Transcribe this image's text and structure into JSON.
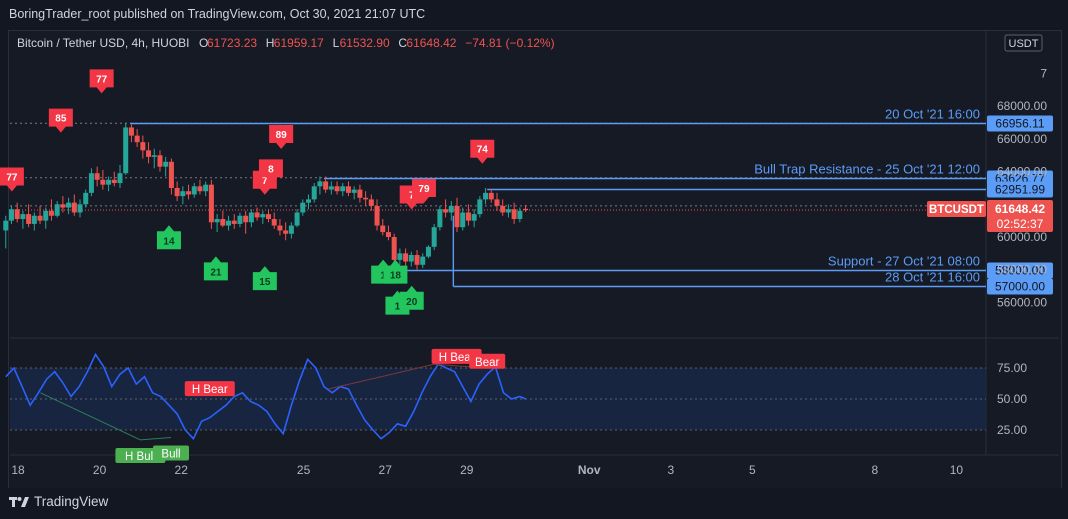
{
  "header": {
    "publisher_line": "BoringTrader_root published on TradingView.com, Oct 30, 2021 21:07 UTC"
  },
  "footer": {
    "brand": "TradingView"
  },
  "colors": {
    "background": "#131722",
    "up": "#26a69a",
    "down": "#ef5350",
    "level_line": "#5b9cf6",
    "rsi_line": "#2962ff",
    "bull_label": "#22c55e",
    "bear_label": "#f23645",
    "text": "#d1d4dc",
    "axis_text": "#b2b5be"
  },
  "chart_data": [
    {
      "type": "candlestick",
      "symbol_line": {
        "name": "Bitcoin / Tether USD, 4h, HUOBI",
        "open_label": "O",
        "open": "61723.23",
        "high_label": "H",
        "high": "61959.17",
        "low_label": "L",
        "low": "61532.90",
        "close_label": "C",
        "close": "61648.42",
        "change": "−74.81 (−0.12%)"
      },
      "currency": "USDT",
      "price_axis_ticks": [
        "7",
        "68000.00",
        "66000.00",
        "64000.00",
        "62000.00",
        "60000.00",
        "58000.00",
        "56000.00"
      ],
      "time_axis_ticks": [
        "18",
        "20",
        "22",
        "25",
        "27",
        "29",
        "Nov",
        "3",
        "5",
        "8",
        "10"
      ],
      "horizontal_levels": [
        {
          "label": "20 Oct '21 16:00",
          "price": "66956.11",
          "value": 66956.11,
          "x_start_day": 20.75
        },
        {
          "label": "Bull Trap Resistance - 25 Oct '21 12:00",
          "price": "63626.77",
          "value": 63626.77,
          "x_start_day": 25.5
        },
        {
          "label": "",
          "price": "62951.99",
          "value": 62951.99,
          "x_start_day": 29.5
        },
        {
          "label": "Support - 27 Oct '21 08:00",
          "price": "58000.00",
          "value": 58000.0,
          "x_start_day": 27.3
        },
        {
          "label": "28 Oct '21 16:00",
          "price": "57000.00",
          "value": 57000.0,
          "x_start_day": 28.67
        }
      ],
      "dotted_levels": [
        66956.11,
        63626.77,
        61900.0
      ],
      "last_price_badge": {
        "symbol": "BTCUSDT",
        "price": "61648.42",
        "countdown": "02:52:37"
      },
      "candles": [
        {
          "t": 17.7,
          "o": 60400,
          "h": 61300,
          "l": 59300,
          "c": 61000
        },
        {
          "t": 17.84,
          "o": 61000,
          "h": 61900,
          "l": 60800,
          "c": 61700
        },
        {
          "t": 17.98,
          "o": 61700,
          "h": 62100,
          "l": 60900,
          "c": 61100
        },
        {
          "t": 18.12,
          "o": 61100,
          "h": 61600,
          "l": 60500,
          "c": 61400
        },
        {
          "t": 18.26,
          "o": 61400,
          "h": 62000,
          "l": 60600,
          "c": 60800
        },
        {
          "t": 18.4,
          "o": 60800,
          "h": 61500,
          "l": 60400,
          "c": 61300
        },
        {
          "t": 18.54,
          "o": 61300,
          "h": 61900,
          "l": 60800,
          "c": 61000
        },
        {
          "t": 18.68,
          "o": 61000,
          "h": 61800,
          "l": 60500,
          "c": 61600
        },
        {
          "t": 18.82,
          "o": 61600,
          "h": 62300,
          "l": 61000,
          "c": 61300
        },
        {
          "t": 18.96,
          "o": 61300,
          "h": 62200,
          "l": 61200,
          "c": 62000
        },
        {
          "t": 19.1,
          "o": 62000,
          "h": 62500,
          "l": 61500,
          "c": 61800
        },
        {
          "t": 19.24,
          "o": 61800,
          "h": 62400,
          "l": 61400,
          "c": 62100
        },
        {
          "t": 19.38,
          "o": 62100,
          "h": 62600,
          "l": 61300,
          "c": 61500
        },
        {
          "t": 19.52,
          "o": 61500,
          "h": 62300,
          "l": 61200,
          "c": 62000
        },
        {
          "t": 19.66,
          "o": 62000,
          "h": 62900,
          "l": 61800,
          "c": 62700
        },
        {
          "t": 19.8,
          "o": 62700,
          "h": 64200,
          "l": 62500,
          "c": 63900
        },
        {
          "t": 19.94,
          "o": 63900,
          "h": 64300,
          "l": 63100,
          "c": 63500
        },
        {
          "t": 20.08,
          "o": 63500,
          "h": 64100,
          "l": 62900,
          "c": 63200
        },
        {
          "t": 20.22,
          "o": 63200,
          "h": 63700,
          "l": 62800,
          "c": 63500
        },
        {
          "t": 20.36,
          "o": 63500,
          "h": 64000,
          "l": 63100,
          "c": 63300
        },
        {
          "t": 20.5,
          "o": 63300,
          "h": 64400,
          "l": 63000,
          "c": 63900
        },
        {
          "t": 20.64,
          "o": 63900,
          "h": 67000,
          "l": 63800,
          "c": 66700
        },
        {
          "t": 20.78,
          "o": 66700,
          "h": 66900,
          "l": 65800,
          "c": 66200
        },
        {
          "t": 20.92,
          "o": 66200,
          "h": 66600,
          "l": 65500,
          "c": 65800
        },
        {
          "t": 21.06,
          "o": 65800,
          "h": 66200,
          "l": 64800,
          "c": 65300
        },
        {
          "t": 21.2,
          "o": 65300,
          "h": 65800,
          "l": 64500,
          "c": 64900
        },
        {
          "t": 21.34,
          "o": 64900,
          "h": 65400,
          "l": 64200,
          "c": 65000
        },
        {
          "t": 21.48,
          "o": 65000,
          "h": 65300,
          "l": 64000,
          "c": 64300
        },
        {
          "t": 21.62,
          "o": 64300,
          "h": 64900,
          "l": 63700,
          "c": 64600
        },
        {
          "t": 21.76,
          "o": 64600,
          "h": 64800,
          "l": 62600,
          "c": 63000
        },
        {
          "t": 21.9,
          "o": 63000,
          "h": 63400,
          "l": 62200,
          "c": 62500
        },
        {
          "t": 22.04,
          "o": 62500,
          "h": 63100,
          "l": 62000,
          "c": 62800
        },
        {
          "t": 22.18,
          "o": 62800,
          "h": 63200,
          "l": 62300,
          "c": 62600
        },
        {
          "t": 22.32,
          "o": 62600,
          "h": 63300,
          "l": 62400,
          "c": 63100
        },
        {
          "t": 22.46,
          "o": 63100,
          "h": 63500,
          "l": 62600,
          "c": 62800
        },
        {
          "t": 22.6,
          "o": 62800,
          "h": 63400,
          "l": 62500,
          "c": 63200
        },
        {
          "t": 22.74,
          "o": 63200,
          "h": 63500,
          "l": 60500,
          "c": 60900
        },
        {
          "t": 22.88,
          "o": 60900,
          "h": 61400,
          "l": 60300,
          "c": 61100
        },
        {
          "t": 23.02,
          "o": 61100,
          "h": 61600,
          "l": 60600,
          "c": 60700
        },
        {
          "t": 23.16,
          "o": 60700,
          "h": 61300,
          "l": 60400,
          "c": 61000
        },
        {
          "t": 23.3,
          "o": 61000,
          "h": 61400,
          "l": 60500,
          "c": 60800
        },
        {
          "t": 23.44,
          "o": 60800,
          "h": 61500,
          "l": 60600,
          "c": 61300
        },
        {
          "t": 23.58,
          "o": 61300,
          "h": 61600,
          "l": 60200,
          "c": 60900
        },
        {
          "t": 23.72,
          "o": 60900,
          "h": 61700,
          "l": 60600,
          "c": 61500
        },
        {
          "t": 23.86,
          "o": 61500,
          "h": 61800,
          "l": 61000,
          "c": 61200
        },
        {
          "t": 24.0,
          "o": 61200,
          "h": 61600,
          "l": 60800,
          "c": 61400
        },
        {
          "t": 24.14,
          "o": 61400,
          "h": 61700,
          "l": 60900,
          "c": 61100
        },
        {
          "t": 24.28,
          "o": 61100,
          "h": 61500,
          "l": 60500,
          "c": 60700
        },
        {
          "t": 24.42,
          "o": 60700,
          "h": 61100,
          "l": 60100,
          "c": 60400
        },
        {
          "t": 24.56,
          "o": 60400,
          "h": 60900,
          "l": 59800,
          "c": 60200
        },
        {
          "t": 24.7,
          "o": 60200,
          "h": 60900,
          "l": 59900,
          "c": 60700
        },
        {
          "t": 24.84,
          "o": 60700,
          "h": 61700,
          "l": 60600,
          "c": 61500
        },
        {
          "t": 24.98,
          "o": 61500,
          "h": 62300,
          "l": 61300,
          "c": 62100
        },
        {
          "t": 25.12,
          "o": 62100,
          "h": 62600,
          "l": 61700,
          "c": 62300
        },
        {
          "t": 25.26,
          "o": 62300,
          "h": 63300,
          "l": 62100,
          "c": 63100
        },
        {
          "t": 25.4,
          "o": 63100,
          "h": 63700,
          "l": 62600,
          "c": 63400
        },
        {
          "t": 25.54,
          "o": 63400,
          "h": 63700,
          "l": 62700,
          "c": 62900
        },
        {
          "t": 25.68,
          "o": 62900,
          "h": 63400,
          "l": 62600,
          "c": 63100
        },
        {
          "t": 25.82,
          "o": 63100,
          "h": 63400,
          "l": 62600,
          "c": 62800
        },
        {
          "t": 25.96,
          "o": 62800,
          "h": 63300,
          "l": 62500,
          "c": 63100
        },
        {
          "t": 26.1,
          "o": 63100,
          "h": 63400,
          "l": 62500,
          "c": 62700
        },
        {
          "t": 26.24,
          "o": 62700,
          "h": 63100,
          "l": 62300,
          "c": 62900
        },
        {
          "t": 26.38,
          "o": 62900,
          "h": 63200,
          "l": 62100,
          "c": 62400
        },
        {
          "t": 26.52,
          "o": 62400,
          "h": 62800,
          "l": 61900,
          "c": 62300
        },
        {
          "t": 26.66,
          "o": 62300,
          "h": 62600,
          "l": 61600,
          "c": 61900
        },
        {
          "t": 26.8,
          "o": 61900,
          "h": 62300,
          "l": 60400,
          "c": 60700
        },
        {
          "t": 26.94,
          "o": 60700,
          "h": 61100,
          "l": 60100,
          "c": 60300
        },
        {
          "t": 27.08,
          "o": 60300,
          "h": 60700,
          "l": 59800,
          "c": 60000
        },
        {
          "t": 27.22,
          "o": 60000,
          "h": 60200,
          "l": 58200,
          "c": 58600
        },
        {
          "t": 27.36,
          "o": 58600,
          "h": 59300,
          "l": 58300,
          "c": 59000
        },
        {
          "t": 27.5,
          "o": 59000,
          "h": 59300,
          "l": 58100,
          "c": 58500
        },
        {
          "t": 27.64,
          "o": 58500,
          "h": 59100,
          "l": 58200,
          "c": 58900
        },
        {
          "t": 27.78,
          "o": 58900,
          "h": 59200,
          "l": 58000,
          "c": 58300
        },
        {
          "t": 27.92,
          "o": 58300,
          "h": 59000,
          "l": 58100,
          "c": 58800
        },
        {
          "t": 28.06,
          "o": 58800,
          "h": 59500,
          "l": 58700,
          "c": 59400
        },
        {
          "t": 28.2,
          "o": 59400,
          "h": 60800,
          "l": 59200,
          "c": 60600
        },
        {
          "t": 28.34,
          "o": 60600,
          "h": 61900,
          "l": 60400,
          "c": 61700
        },
        {
          "t": 28.48,
          "o": 61700,
          "h": 62300,
          "l": 61200,
          "c": 61500
        },
        {
          "t": 28.62,
          "o": 61500,
          "h": 62200,
          "l": 61000,
          "c": 61900
        },
        {
          "t": 28.76,
          "o": 61900,
          "h": 62400,
          "l": 60300,
          "c": 60600
        },
        {
          "t": 28.9,
          "o": 60600,
          "h": 61800,
          "l": 60400,
          "c": 61500
        },
        {
          "t": 29.04,
          "o": 61500,
          "h": 62000,
          "l": 60700,
          "c": 61000
        },
        {
          "t": 29.18,
          "o": 61000,
          "h": 61700,
          "l": 60600,
          "c": 61400
        },
        {
          "t": 29.32,
          "o": 61400,
          "h": 62500,
          "l": 61200,
          "c": 62300
        },
        {
          "t": 29.46,
          "o": 62300,
          "h": 63000,
          "l": 62000,
          "c": 62700
        },
        {
          "t": 29.6,
          "o": 62700,
          "h": 62950,
          "l": 62100,
          "c": 62300
        },
        {
          "t": 29.74,
          "o": 62300,
          "h": 62700,
          "l": 61600,
          "c": 61900
        },
        {
          "t": 29.88,
          "o": 61900,
          "h": 62300,
          "l": 61300,
          "c": 61500
        },
        {
          "t": 30.02,
          "o": 61500,
          "h": 62000,
          "l": 61200,
          "c": 61700
        },
        {
          "t": 30.16,
          "o": 61700,
          "h": 62100,
          "l": 60800,
          "c": 61100
        },
        {
          "t": 30.3,
          "o": 61100,
          "h": 61800,
          "l": 60900,
          "c": 61600
        },
        {
          "t": 30.44,
          "o": 61723,
          "h": 61959,
          "l": 61533,
          "c": 61648
        }
      ],
      "signals": [
        {
          "kind": "bear",
          "text": "77",
          "t": 17.85,
          "price": 63700
        },
        {
          "kind": "bear",
          "text": "85",
          "t": 19.05,
          "price": 67300
        },
        {
          "kind": "bear",
          "text": "77",
          "t": 20.05,
          "price": 69700
        },
        {
          "kind": "bear",
          "text": "7",
          "t": 24.05,
          "price": 63500
        },
        {
          "kind": "bear",
          "text": "8",
          "t": 24.2,
          "price": 64200
        },
        {
          "kind": "bear",
          "text": "89",
          "t": 24.45,
          "price": 66300
        },
        {
          "kind": "bear",
          "text": "7",
          "t": 27.65,
          "price": 62600
        },
        {
          "kind": "bear",
          "text": "79",
          "t": 27.95,
          "price": 63000
        },
        {
          "kind": "bear",
          "text": "74",
          "t": 29.38,
          "price": 65400
        },
        {
          "kind": "bull",
          "text": "14",
          "t": 21.7,
          "price": 59800
        },
        {
          "kind": "bull",
          "text": "21",
          "t": 22.85,
          "price": 57900
        },
        {
          "kind": "bull",
          "text": "15",
          "t": 24.05,
          "price": 57300
        },
        {
          "kind": "bull",
          "text": "1",
          "t": 26.95,
          "price": 57700
        },
        {
          "kind": "bull",
          "text": "18",
          "t": 27.25,
          "price": 57700
        },
        {
          "kind": "bull",
          "text": "1",
          "t": 27.3,
          "price": 55800
        },
        {
          "kind": "bull",
          "text": "20",
          "t": 27.65,
          "price": 56100
        }
      ]
    },
    {
      "type": "line",
      "name": "RSI",
      "y_axis_ticks": [
        "75.00",
        "50.00",
        "25.00"
      ],
      "band": [
        25,
        75
      ],
      "x": [
        17.7,
        17.9,
        18.1,
        18.3,
        18.5,
        18.7,
        18.9,
        19.1,
        19.3,
        19.5,
        19.7,
        19.9,
        20.1,
        20.3,
        20.5,
        20.7,
        20.9,
        21.1,
        21.3,
        21.5,
        21.7,
        21.9,
        22.1,
        22.3,
        22.5,
        22.7,
        22.9,
        23.1,
        23.3,
        23.5,
        23.7,
        23.9,
        24.1,
        24.3,
        24.5,
        24.7,
        24.9,
        25.1,
        25.3,
        25.5,
        25.7,
        25.9,
        26.1,
        26.3,
        26.5,
        26.7,
        26.9,
        27.1,
        27.3,
        27.5,
        27.7,
        27.9,
        28.1,
        28.3,
        28.5,
        28.7,
        28.9,
        29.1,
        29.3,
        29.5,
        29.7,
        29.9,
        30.1,
        30.3,
        30.44
      ],
      "values": [
        68,
        75,
        60,
        45,
        55,
        66,
        72,
        63,
        52,
        60,
        72,
        86,
        76,
        60,
        70,
        75,
        62,
        68,
        55,
        52,
        45,
        38,
        25,
        18,
        32,
        35,
        40,
        45,
        52,
        55,
        48,
        45,
        40,
        30,
        22,
        45,
        65,
        82,
        75,
        60,
        55,
        60,
        58,
        45,
        33,
        25,
        18,
        23,
        30,
        28,
        40,
        55,
        68,
        78,
        75,
        72,
        60,
        48,
        62,
        70,
        76,
        55,
        50,
        52,
        50
      ],
      "annotations": [
        {
          "kind": "bear",
          "text": "H Bear",
          "t": 22.7,
          "value": 58
        },
        {
          "kind": "bear",
          "text": "H Bear",
          "t": 28.75,
          "value": 84
        },
        {
          "kind": "bear",
          "text": "Bear",
          "t": 29.5,
          "value": 80
        },
        {
          "kind": "bull",
          "text": "H Bull",
          "t": 21.0,
          "value": 4
        },
        {
          "kind": "bull",
          "text": "Bull",
          "t": 21.75,
          "value": 6
        }
      ]
    }
  ]
}
